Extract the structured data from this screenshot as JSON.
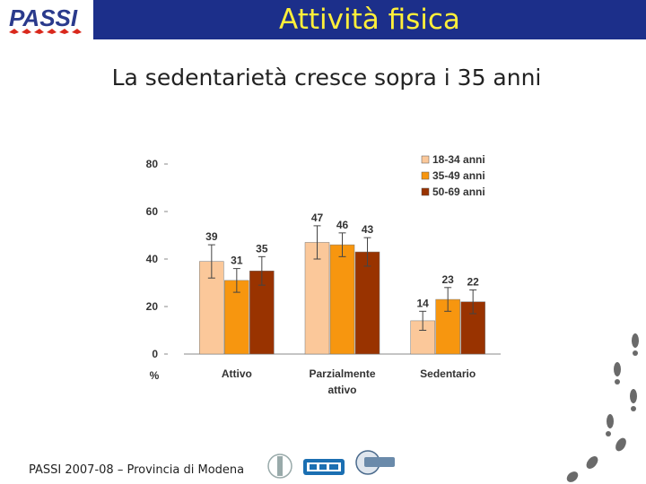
{
  "header": {
    "title": "Attività fisica",
    "logo_text": "PASSI"
  },
  "subtitle": "La sedentarietà cresce sopra i 35 anni",
  "footer": {
    "text": "PASSI 2007-08 – Provincia di Modena"
  },
  "colors": {
    "header_bg": "#1c2f8a",
    "header_title": "#ffef3a"
  },
  "icons": [
    "passi-logo-icon",
    "coat-of-arms-icon",
    "ccm-logo-icon",
    "gruppo-logo-icon",
    "footprints-icon"
  ],
  "chart_data": {
    "type": "bar",
    "categories": [
      "Attivo",
      "Parzialmente attivo",
      "Sedentario"
    ],
    "series": [
      {
        "name": "18-34 anni",
        "values": [
          39,
          47,
          14
        ],
        "color": "#fbc89a",
        "errors": [
          7,
          7,
          4
        ]
      },
      {
        "name": "35-49 anni",
        "values": [
          31,
          46,
          23
        ],
        "color": "#f7960f",
        "errors": [
          5,
          5,
          5
        ]
      },
      {
        "name": "50-69 anni",
        "values": [
          35,
          43,
          22
        ],
        "color": "#993300",
        "errors": [
          6,
          6,
          5
        ]
      }
    ],
    "ylabel": "%",
    "ylim": [
      0,
      80
    ],
    "yticks": [
      "0",
      "20",
      "40",
      "60",
      "80"
    ],
    "legend_position": "top-right",
    "grid": false
  }
}
